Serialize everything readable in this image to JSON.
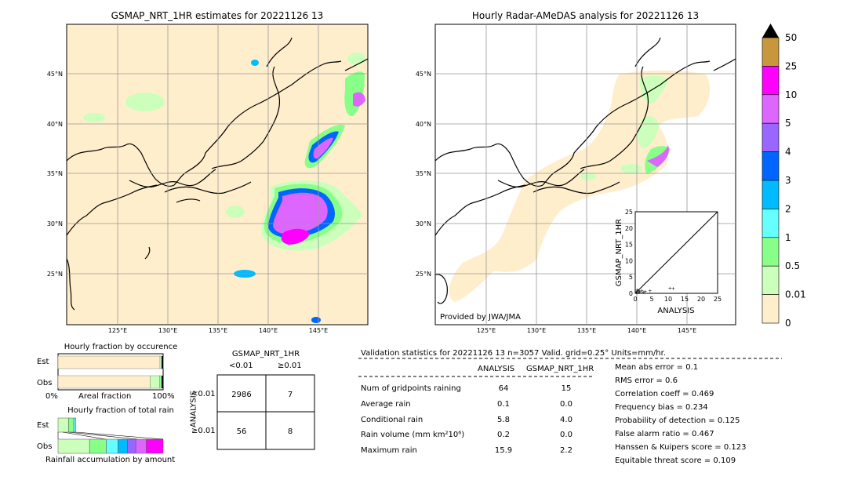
{
  "left_map": {
    "title": "GSMAP_NRT_1HR estimates for 20221126 13",
    "lat_labels": [
      "45°N",
      "40°N",
      "35°N",
      "30°N",
      "25°N"
    ],
    "lon_labels": [
      "125°E",
      "130°E",
      "135°E",
      "140°E",
      "145°E"
    ]
  },
  "right_map": {
    "title": "Hourly Radar-AMeDAS analysis for 20221126 13",
    "lat_labels": [
      "45°N",
      "40°N",
      "35°N",
      "30°N",
      "25°N"
    ],
    "lon_labels": [
      "125°E",
      "130°E",
      "135°E",
      "140°E",
      "145°E"
    ],
    "credit": "Provided by JWA/JMA"
  },
  "inset_scatter": {
    "ylabel": "GSMAP_NRT_1HR",
    "xlabel": "ANALYSIS",
    "ticks": [
      "0",
      "5",
      "10",
      "15",
      "20",
      "25"
    ]
  },
  "colorbar": {
    "labels": [
      "50",
      "25",
      "10",
      "5",
      "4",
      "3",
      "2",
      "1",
      "0.5",
      "0.01",
      "0"
    ],
    "colors": [
      "#c8963c",
      "#ff00ff",
      "#dd66ff",
      "#9966ff",
      "#0066ff",
      "#00bbff",
      "#66ffff",
      "#88ff88",
      "#ccffbb",
      "#ffeecc"
    ]
  },
  "occurrence": {
    "title": "Hourly fraction by occurence",
    "row_labels": [
      "Est",
      "Obs"
    ],
    "axis_left": "0%",
    "axis_mid": "Areal fraction",
    "axis_right": "100%"
  },
  "total_rain": {
    "title": "Hourly fraction of total rain",
    "row_labels": [
      "Est",
      "Obs"
    ],
    "footer": "Rainfall accumulation by amount"
  },
  "contingency": {
    "title": "GSMAP_NRT_1HR",
    "col_labels": [
      "<0.01",
      "≥0.01"
    ],
    "row_axis": "ANALYSIS",
    "row_labels": [
      "<0.01",
      "≥0.01"
    ],
    "cells": [
      "2986",
      "7",
      "56",
      "8"
    ]
  },
  "validation": {
    "header": "Validation statistics for 20221126 13  n=3057 Valid. grid=0.25° Units=mm/hr.",
    "col_analysis": "ANALYSIS",
    "col_gsmap": "GSMAP_NRT_1HR",
    "rows": [
      {
        "label": "Num of gridpoints raining",
        "a": "64",
        "g": "15"
      },
      {
        "label": "Average rain",
        "a": "0.1",
        "g": "0.0"
      },
      {
        "label": "Conditional rain",
        "a": "5.8",
        "g": "4.0"
      },
      {
        "label": "Rain volume (mm km²10⁶)",
        "a": "0.2",
        "g": "0.0"
      },
      {
        "label": "Maximum rain",
        "a": "15.9",
        "g": "2.2"
      }
    ],
    "scores": [
      "Mean abs error =    0.1",
      "RMS error =    0.6",
      "Correlation coeff =  0.469",
      "Frequency bias =  0.234",
      "Probability of detection =  0.125",
      "False alarm ratio =  0.467",
      "Hanssen & Kuipers score =  0.123",
      "Equitable threat score =  0.109"
    ]
  },
  "chart_data": [
    {
      "type": "bar",
      "title": "Hourly fraction by occurence",
      "categories": [
        "Est",
        "Obs"
      ],
      "series": [
        {
          "values": [
            0.97,
            0.877
          ]
        },
        {
          "values": [
            0.02,
            0.09
          ]
        },
        {
          "values": [
            0.01,
            0.02
          ]
        }
      ],
      "xlim": [
        0,
        1
      ]
    },
    {
      "type": "bar",
      "title": "Hourly fraction of total rain",
      "categories": [
        "Est",
        "Obs"
      ],
      "series": [
        {
          "values": [
            0.1,
            0.3
          ]
        },
        {
          "values": [
            0.05,
            0.16
          ]
        },
        {
          "values": [
            0.02,
            0.11
          ]
        },
        {
          "values": [
            0.0,
            0.09
          ]
        },
        {
          "values": [
            0.0,
            0.08
          ]
        },
        {
          "values": [
            0.0,
            0.1
          ]
        },
        {
          "values": [
            0.0,
            0.16
          ]
        }
      ]
    },
    {
      "type": "scatter",
      "xlabel": "ANALYSIS",
      "ylabel": "GSMAP_NRT_1HR",
      "xlim": [
        0,
        25
      ],
      "ylim": [
        0,
        25
      ],
      "points": [
        [
          0.3,
          0.5
        ],
        [
          0.6,
          1.1
        ],
        [
          1.0,
          0.8
        ],
        [
          1.4,
          0.5
        ],
        [
          2.0,
          0.9
        ],
        [
          3.0,
          0.5
        ],
        [
          4.5,
          0.7
        ],
        [
          10.5,
          1.6
        ],
        [
          11.5,
          1.4
        ],
        [
          0.5,
          0.1
        ],
        [
          1.2,
          0.2
        ],
        [
          2.4,
          0.3
        ]
      ]
    }
  ]
}
